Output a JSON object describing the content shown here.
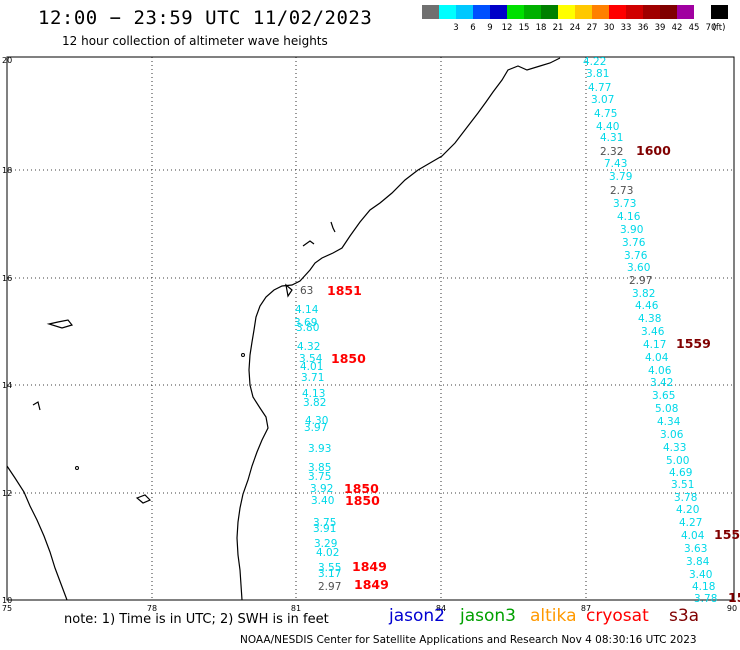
{
  "header": {
    "title": "12:00 − 23:59 UTC 11/02/2023",
    "subtitle": "12 hour collection of altimeter wave heights"
  },
  "colorbar": {
    "cells": [
      {
        "color": "#707070",
        "label": ""
      },
      {
        "color": "#00ffff",
        "label": "3"
      },
      {
        "color": "#00c8ff",
        "label": "6"
      },
      {
        "color": "#0050ff",
        "label": "9"
      },
      {
        "color": "#0000c8",
        "label": "12"
      },
      {
        "color": "#00e000",
        "label": "15"
      },
      {
        "color": "#00b000",
        "label": "18"
      },
      {
        "color": "#008000",
        "label": "21"
      },
      {
        "color": "#ffff00",
        "label": "24"
      },
      {
        "color": "#ffc800",
        "label": "27"
      },
      {
        "color": "#ff8000",
        "label": "30"
      },
      {
        "color": "#ff0000",
        "label": "33"
      },
      {
        "color": "#d00000",
        "label": "36"
      },
      {
        "color": "#a00000",
        "label": "39"
      },
      {
        "color": "#800000",
        "label": "42"
      },
      {
        "color": "#a000a0",
        "label": "45"
      },
      {
        "color": "#ffffff",
        "label": "70"
      },
      {
        "color": "#000000",
        "label": "(ft)"
      }
    ]
  },
  "axes": {
    "x_ticks": [
      "75",
      "78",
      "81",
      "84",
      "87",
      "90"
    ],
    "y_ticks": [
      "10",
      "12",
      "14",
      "16",
      "18",
      "20"
    ]
  },
  "track_labels": [
    {
      "id": "t1600",
      "text": "1600",
      "color": "#800000"
    },
    {
      "id": "t1559",
      "text": "1559",
      "color": "#800000"
    },
    {
      "id": "t155",
      "text": "155",
      "color": "#800000"
    },
    {
      "id": "t15",
      "text": "15",
      "color": "#800000"
    },
    {
      "id": "t1851",
      "text": "1851",
      "color": "#ff0000"
    },
    {
      "id": "t1850a",
      "text": "1850",
      "color": "#ff0000"
    },
    {
      "id": "t1850b",
      "text": "1850",
      "color": "#ff0000"
    },
    {
      "id": "t1850c",
      "text": "1850",
      "color": "#ff0000"
    },
    {
      "id": "t1849a",
      "text": "1849",
      "color": "#ff0000"
    },
    {
      "id": "t1849b",
      "text": "1849",
      "color": "#ff0000"
    }
  ],
  "east_track_values": [
    "4.22",
    "3.81",
    "4.77",
    "3.07",
    "4.75",
    "4.40",
    "4.31",
    "2.32",
    "7.43",
    "3.79",
    "2.73",
    "3.73",
    "4.16",
    "3.90",
    "3.76",
    "3.76",
    "3.60",
    "2.97",
    "3.82",
    "4.46",
    "4.38",
    "3.46",
    "4.17",
    "4.04",
    "4.06",
    "3.42",
    "3.65",
    "5.08",
    "4.34",
    "3.06",
    "4.33",
    "5.00",
    "4.69",
    "3.51",
    "3.78",
    "4.20",
    "4.27",
    "4.04",
    "3.63",
    "3.84",
    "3.40",
    "4.18",
    "3.78"
  ],
  "west_track_values": [
    "63",
    "4.14",
    "3.69",
    "3.80",
    "4.32",
    "3.54",
    "4.01",
    "3.71",
    "4.13",
    "3.82",
    "4.30",
    "3.97",
    "3.93",
    "3.85",
    "3.75",
    "3.92",
    "3.40",
    "3.75",
    "3.91",
    "3.29",
    "4.02",
    "3.55",
    "3.17",
    "2.97"
  ],
  "footer": {
    "note": "note: 1) Time is in UTC; 2) SWH is in feet",
    "credit": "NOAA/NESDIS Center for Satellite Applications and Research   Nov  4 08:30:16 UTC 2023"
  },
  "legend": [
    {
      "id": "jason2",
      "text": "jason2",
      "color": "#0000d0"
    },
    {
      "id": "jason3",
      "text": "jason3",
      "color": "#00a000"
    },
    {
      "id": "altika",
      "text": "altika",
      "color": "#ff9900"
    },
    {
      "id": "cryosat",
      "text": "cryosat",
      "color": "#ff0000"
    },
    {
      "id": "s3a",
      "text": "s3a",
      "color": "#800000"
    }
  ]
}
